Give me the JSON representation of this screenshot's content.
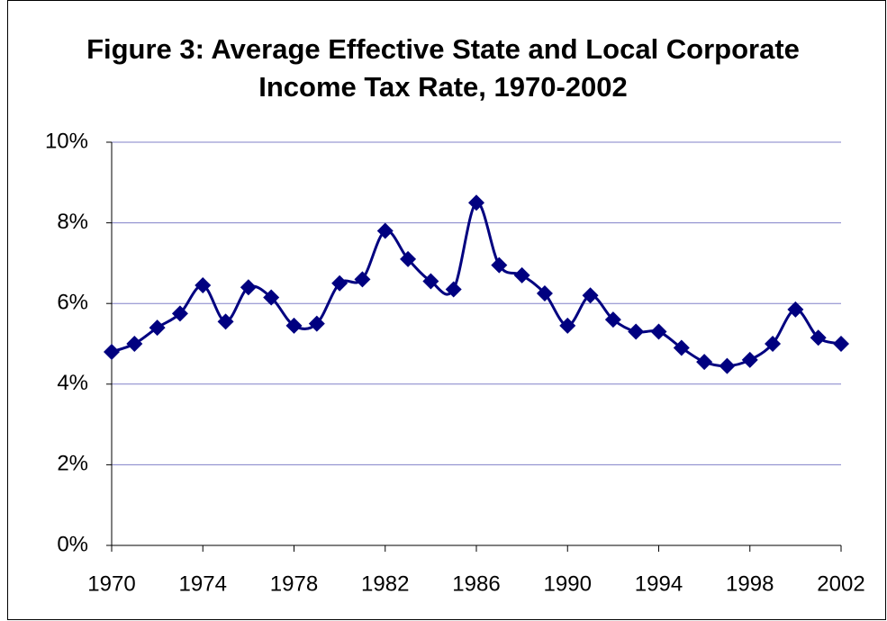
{
  "chart_data": {
    "type": "line",
    "title": "Figure 3: Average Effective State and Local Corporate Income Tax Rate, 1970-2002",
    "x": [
      1970,
      1971,
      1972,
      1973,
      1974,
      1975,
      1976,
      1977,
      1978,
      1979,
      1980,
      1981,
      1982,
      1983,
      1984,
      1985,
      1986,
      1987,
      1988,
      1989,
      1990,
      1991,
      1992,
      1993,
      1994,
      1995,
      1996,
      1997,
      1998,
      1999,
      2000,
      2001,
      2002
    ],
    "series": [
      {
        "color": "#000080",
        "values": [
          4.8,
          5.0,
          5.4,
          5.75,
          6.45,
          5.55,
          6.4,
          6.15,
          5.45,
          5.5,
          6.5,
          6.6,
          7.8,
          7.1,
          6.55,
          6.35,
          8.5,
          6.95,
          6.7,
          6.25,
          5.45,
          6.2,
          5.6,
          5.3,
          5.3,
          4.9,
          4.55,
          4.45,
          4.6,
          5.0,
          5.85,
          5.15,
          5.0
        ]
      }
    ],
    "xlim": [
      1970,
      2002
    ],
    "xticks": [
      1970,
      1974,
      1978,
      1982,
      1986,
      1990,
      1994,
      1998,
      2002
    ],
    "ylim": [
      0,
      10
    ],
    "yticks": [
      {
        "value": 0,
        "label": "0%"
      },
      {
        "value": 2,
        "label": "2%"
      },
      {
        "value": 4,
        "label": "4%"
      },
      {
        "value": 6,
        "label": "6%"
      },
      {
        "value": 8,
        "label": "8%"
      },
      {
        "value": 10,
        "label": "10%"
      }
    ],
    "grid": true,
    "grid_color": "#8080c8"
  }
}
